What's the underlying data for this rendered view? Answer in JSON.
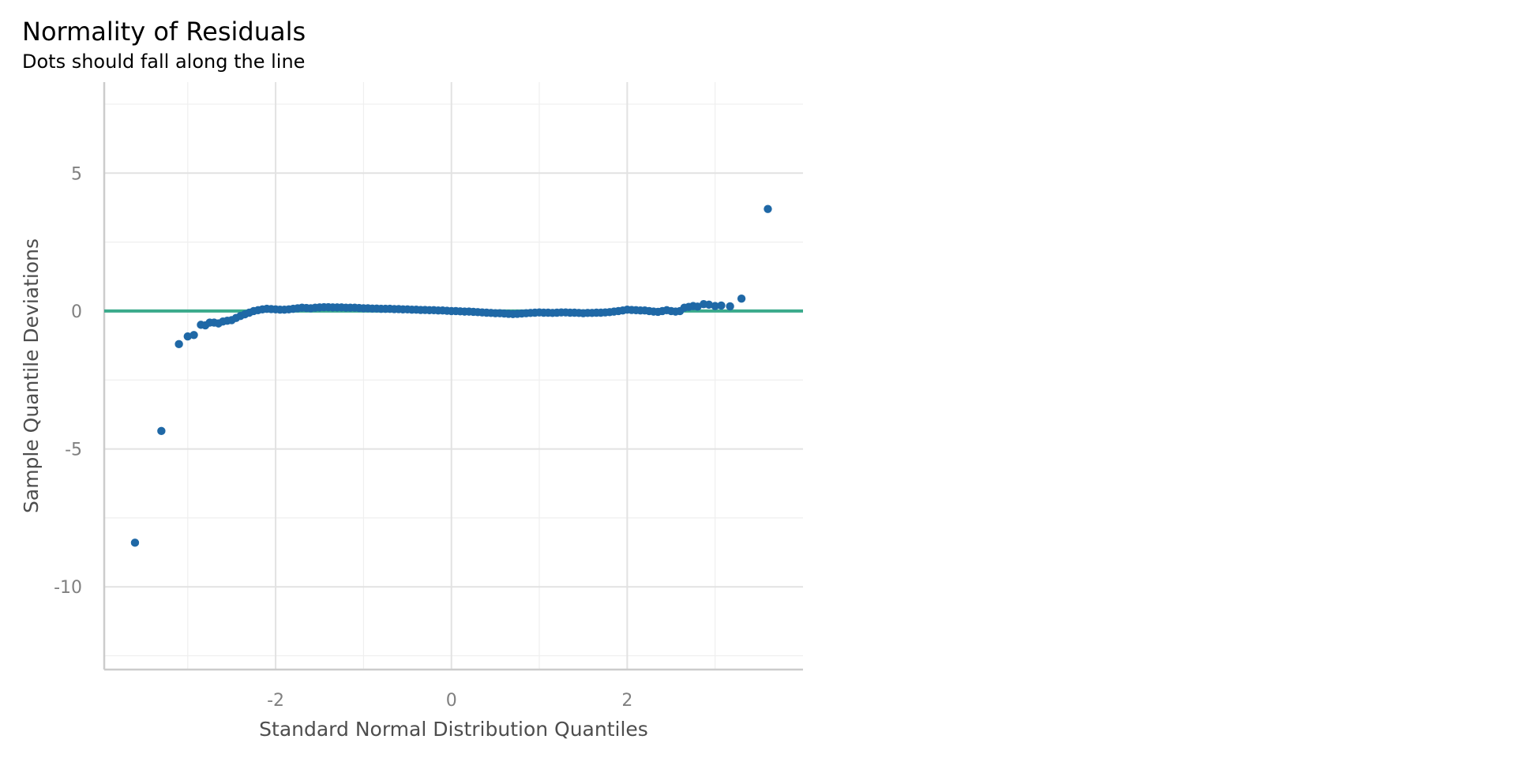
{
  "chart_data": {
    "type": "scatter",
    "title": "Normality of Residuals",
    "subtitle": "Dots should fall along the line",
    "xlabel": "Standard Normal Distribution Quantiles",
    "ylabel": "Sample Quantile Deviations",
    "xlim": [
      -3.95,
      4.0
    ],
    "ylim": [
      -13.0,
      8.3
    ],
    "x_ticks": [
      -2,
      0,
      2
    ],
    "x_tick_labels": [
      "-2",
      "0",
      "2"
    ],
    "y_ticks": [
      -10,
      -5,
      0,
      5
    ],
    "y_tick_labels": [
      "-10",
      "-5",
      "0",
      "5"
    ],
    "x_minor_ticks": [
      -3,
      -1,
      1,
      3
    ],
    "y_minor_ticks": [
      -12.5,
      -7.5,
      -2.5,
      2.5,
      7.5
    ],
    "grid": true,
    "reference_line": {
      "y": 0,
      "color": "#3aaa8b"
    },
    "point_color": "#1f68a6",
    "points": [
      [
        -3.6,
        -8.4
      ],
      [
        -3.3,
        -4.35
      ],
      [
        -3.1,
        -1.2
      ],
      [
        -3.0,
        -0.92
      ],
      [
        -2.93,
        -0.87
      ],
      [
        -2.85,
        -0.5
      ],
      [
        -2.8,
        -0.52
      ],
      [
        -2.75,
        -0.42
      ],
      [
        -2.7,
        -0.42
      ],
      [
        -2.65,
        -0.45
      ],
      [
        -2.6,
        -0.38
      ],
      [
        -2.55,
        -0.35
      ],
      [
        -2.5,
        -0.33
      ],
      [
        -2.45,
        -0.25
      ],
      [
        -2.4,
        -0.18
      ],
      [
        -2.35,
        -0.12
      ],
      [
        -2.3,
        -0.06
      ],
      [
        -2.25,
        0.0
      ],
      [
        -2.2,
        0.03
      ],
      [
        -2.15,
        0.06
      ],
      [
        -2.1,
        0.08
      ],
      [
        -2.05,
        0.07
      ],
      [
        -2.0,
        0.06
      ],
      [
        -1.95,
        0.05
      ],
      [
        -1.9,
        0.05
      ],
      [
        -1.85,
        0.06
      ],
      [
        -1.8,
        0.08
      ],
      [
        -1.75,
        0.1
      ],
      [
        -1.7,
        0.12
      ],
      [
        -1.65,
        0.11
      ],
      [
        -1.6,
        0.1
      ],
      [
        -1.55,
        0.12
      ],
      [
        -1.5,
        0.13
      ],
      [
        -1.45,
        0.14
      ],
      [
        -1.4,
        0.14
      ],
      [
        -1.35,
        0.13
      ],
      [
        -1.3,
        0.13
      ],
      [
        -1.25,
        0.13
      ],
      [
        -1.2,
        0.12
      ],
      [
        -1.15,
        0.12
      ],
      [
        -1.1,
        0.12
      ],
      [
        -1.05,
        0.11
      ],
      [
        -1.0,
        0.1
      ],
      [
        -0.95,
        0.1
      ],
      [
        -0.9,
        0.09
      ],
      [
        -0.85,
        0.09
      ],
      [
        -0.8,
        0.08
      ],
      [
        -0.75,
        0.08
      ],
      [
        -0.7,
        0.08
      ],
      [
        -0.65,
        0.07
      ],
      [
        -0.6,
        0.07
      ],
      [
        -0.55,
        0.06
      ],
      [
        -0.5,
        0.06
      ],
      [
        -0.45,
        0.05
      ],
      [
        -0.4,
        0.05
      ],
      [
        -0.35,
        0.04
      ],
      [
        -0.3,
        0.04
      ],
      [
        -0.25,
        0.03
      ],
      [
        -0.2,
        0.03
      ],
      [
        -0.15,
        0.02
      ],
      [
        -0.1,
        0.02
      ],
      [
        -0.05,
        0.01
      ],
      [
        0.0,
        0.0
      ],
      [
        0.05,
        0.0
      ],
      [
        0.1,
        -0.01
      ],
      [
        0.15,
        -0.02
      ],
      [
        0.2,
        -0.02
      ],
      [
        0.25,
        -0.03
      ],
      [
        0.3,
        -0.04
      ],
      [
        0.35,
        -0.05
      ],
      [
        0.4,
        -0.06
      ],
      [
        0.45,
        -0.07
      ],
      [
        0.5,
        -0.08
      ],
      [
        0.55,
        -0.08
      ],
      [
        0.6,
        -0.09
      ],
      [
        0.65,
        -0.1
      ],
      [
        0.7,
        -0.11
      ],
      [
        0.75,
        -0.1
      ],
      [
        0.8,
        -0.09
      ],
      [
        0.85,
        -0.08
      ],
      [
        0.9,
        -0.07
      ],
      [
        0.95,
        -0.06
      ],
      [
        1.0,
        -0.05
      ],
      [
        1.05,
        -0.06
      ],
      [
        1.1,
        -0.06
      ],
      [
        1.15,
        -0.07
      ],
      [
        1.2,
        -0.06
      ],
      [
        1.25,
        -0.05
      ],
      [
        1.3,
        -0.05
      ],
      [
        1.35,
        -0.06
      ],
      [
        1.4,
        -0.06
      ],
      [
        1.45,
        -0.07
      ],
      [
        1.5,
        -0.08
      ],
      [
        1.55,
        -0.07
      ],
      [
        1.6,
        -0.07
      ],
      [
        1.65,
        -0.06
      ],
      [
        1.7,
        -0.06
      ],
      [
        1.75,
        -0.05
      ],
      [
        1.8,
        -0.04
      ],
      [
        1.85,
        -0.02
      ],
      [
        1.9,
        0.0
      ],
      [
        1.95,
        0.02
      ],
      [
        2.0,
        0.05
      ],
      [
        2.05,
        0.04
      ],
      [
        2.1,
        0.03
      ],
      [
        2.15,
        0.02
      ],
      [
        2.2,
        0.02
      ],
      [
        2.25,
        0.0
      ],
      [
        2.3,
        -0.02
      ],
      [
        2.35,
        -0.03
      ],
      [
        2.4,
        0.0
      ],
      [
        2.45,
        0.03
      ],
      [
        2.5,
        0.0
      ],
      [
        2.55,
        -0.02
      ],
      [
        2.6,
        0.0
      ],
      [
        2.65,
        0.12
      ],
      [
        2.7,
        0.15
      ],
      [
        2.75,
        0.18
      ],
      [
        2.8,
        0.16
      ],
      [
        2.87,
        0.25
      ],
      [
        2.93,
        0.23
      ],
      [
        3.0,
        0.18
      ],
      [
        3.07,
        0.2
      ],
      [
        3.17,
        0.17
      ],
      [
        3.3,
        0.45
      ],
      [
        3.6,
        3.7
      ]
    ]
  }
}
